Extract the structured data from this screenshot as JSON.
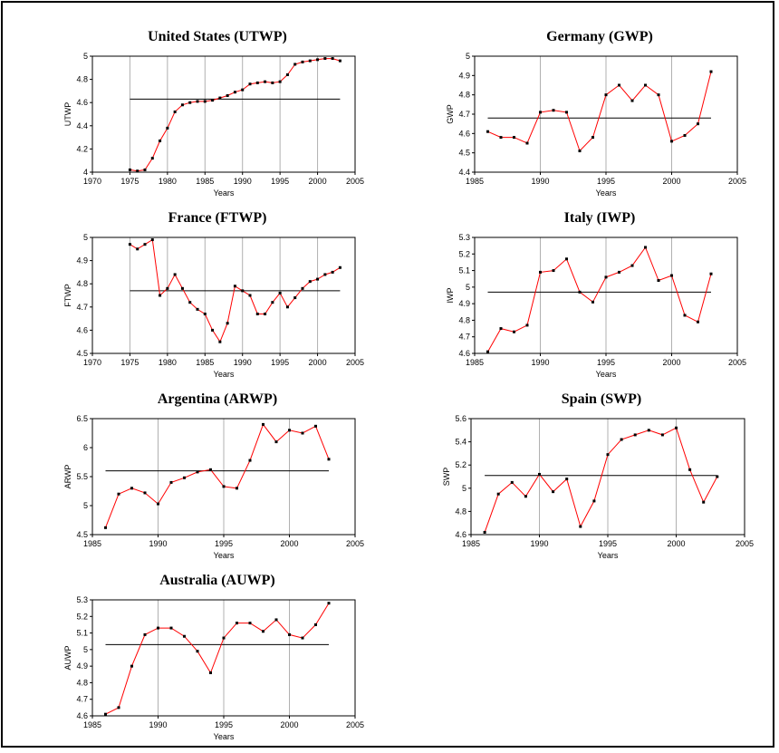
{
  "chart_data": [
    {
      "type": "line",
      "title": "United States (UTWP)",
      "xlabel": "Years",
      "ylabel": "UTWP",
      "xlim": [
        1970,
        2005
      ],
      "ylim": [
        4,
        5
      ],
      "xticks": [
        1970,
        1975,
        1980,
        1985,
        1990,
        1995,
        2000,
        2005
      ],
      "yticks": [
        "4",
        "4.2",
        "4.4",
        "4.6",
        "4.8",
        "5"
      ],
      "grid": "vertical",
      "mean": 4.63,
      "mean_range": [
        1975,
        2003
      ],
      "x": [
        1975,
        1976,
        1977,
        1978,
        1979,
        1980,
        1981,
        1982,
        1983,
        1984,
        1985,
        1986,
        1987,
        1988,
        1989,
        1990,
        1991,
        1992,
        1993,
        1994,
        1995,
        1996,
        1997,
        1998,
        1999,
        2000,
        2001,
        2002,
        2003
      ],
      "values": [
        4.02,
        4.01,
        4.02,
        4.12,
        4.27,
        4.38,
        4.52,
        4.58,
        4.6,
        4.61,
        4.61,
        4.62,
        4.64,
        4.66,
        4.69,
        4.71,
        4.76,
        4.77,
        4.78,
        4.77,
        4.78,
        4.84,
        4.93,
        4.95,
        4.96,
        4.97,
        4.98,
        4.98,
        4.96
      ]
    },
    {
      "type": "line",
      "title": "Germany (GWP)",
      "xlabel": "Years",
      "ylabel": "GWP",
      "xlim": [
        1985,
        2005
      ],
      "ylim": [
        4.4,
        5
      ],
      "xticks": [
        1985,
        1990,
        1995,
        2000,
        2005
      ],
      "yticks": [
        "4.4",
        "4.5",
        "4.6",
        "4.7",
        "4.8",
        "4.9",
        "5"
      ],
      "grid": "vertical",
      "mean": 4.68,
      "mean_range": [
        1986,
        2003
      ],
      "x": [
        1986,
        1987,
        1988,
        1989,
        1990,
        1991,
        1992,
        1993,
        1994,
        1995,
        1996,
        1997,
        1998,
        1999,
        2000,
        2001,
        2002,
        2003
      ],
      "values": [
        4.61,
        4.58,
        4.58,
        4.55,
        4.71,
        4.72,
        4.71,
        4.51,
        4.58,
        4.8,
        4.85,
        4.77,
        4.85,
        4.8,
        4.56,
        4.59,
        4.65,
        4.92
      ]
    },
    {
      "type": "line",
      "title": "France (FTWP)",
      "xlabel": "Years",
      "ylabel": "FTWP",
      "xlim": [
        1970,
        2005
      ],
      "ylim": [
        4.5,
        5
      ],
      "xticks": [
        1970,
        1975,
        1980,
        1985,
        1990,
        1995,
        2000,
        2005
      ],
      "yticks": [
        "4.5",
        "4.6",
        "4.7",
        "4.8",
        "4.9",
        "5"
      ],
      "grid": "vertical",
      "mean": 4.77,
      "mean_range": [
        1975,
        2003
      ],
      "x": [
        1975,
        1976,
        1977,
        1978,
        1979,
        1980,
        1981,
        1982,
        1983,
        1984,
        1985,
        1986,
        1987,
        1988,
        1989,
        1990,
        1991,
        1992,
        1993,
        1994,
        1995,
        1996,
        1997,
        1998,
        1999,
        2000,
        2001,
        2002,
        2003
      ],
      "values": [
        4.97,
        4.95,
        4.97,
        4.99,
        4.75,
        4.78,
        4.84,
        4.78,
        4.72,
        4.69,
        4.67,
        4.6,
        4.55,
        4.63,
        4.79,
        4.77,
        4.75,
        4.67,
        4.67,
        4.72,
        4.76,
        4.7,
        4.74,
        4.78,
        4.81,
        4.82,
        4.84,
        4.85,
        4.87
      ]
    },
    {
      "type": "line",
      "title": "Italy (IWP)",
      "xlabel": "Years",
      "ylabel": "IWP",
      "xlim": [
        1985,
        2005
      ],
      "ylim": [
        4.6,
        5.3
      ],
      "xticks": [
        1985,
        1990,
        1995,
        2000,
        2005
      ],
      "yticks": [
        "4.6",
        "4.7",
        "4.8",
        "4.9",
        "5",
        "5.1",
        "5.2",
        "5.3"
      ],
      "grid": "vertical",
      "mean": 4.97,
      "mean_range": [
        1986,
        2003
      ],
      "x": [
        1986,
        1987,
        1988,
        1989,
        1990,
        1991,
        1992,
        1993,
        1994,
        1995,
        1996,
        1997,
        1998,
        1999,
        2000,
        2001,
        2002,
        2003
      ],
      "values": [
        4.61,
        4.75,
        4.73,
        4.77,
        5.09,
        5.1,
        5.17,
        4.97,
        4.91,
        5.06,
        5.09,
        5.13,
        5.24,
        5.04,
        5.07,
        4.83,
        4.79,
        5.08
      ]
    },
    {
      "type": "line",
      "title": "Argentina (ARWP)",
      "xlabel": "Years",
      "ylabel": "ARWP",
      "xlim": [
        1985,
        2005
      ],
      "ylim": [
        4.5,
        6.5
      ],
      "xticks": [
        1985,
        1990,
        1995,
        2000,
        2005
      ],
      "yticks": [
        "4.5",
        "5",
        "5.5",
        "6",
        "6.5"
      ],
      "grid": "vertical",
      "mean": 5.6,
      "mean_range": [
        1986,
        2003
      ],
      "x": [
        1986,
        1987,
        1988,
        1989,
        1990,
        1991,
        1992,
        1993,
        1994,
        1995,
        1996,
        1997,
        1998,
        1999,
        2000,
        2001,
        2002,
        2003
      ],
      "values": [
        4.62,
        5.2,
        5.3,
        5.22,
        5.03,
        5.4,
        5.48,
        5.58,
        5.62,
        5.33,
        5.3,
        5.78,
        6.4,
        6.1,
        6.3,
        6.25,
        6.37,
        5.8
      ]
    },
    {
      "type": "line",
      "title": "Spain (SWP)",
      "xlabel": "Years",
      "ylabel": "SWP",
      "xlim": [
        1985,
        2005
      ],
      "ylim": [
        4.6,
        5.6
      ],
      "xticks": [
        1985,
        1990,
        1995,
        2000,
        2005
      ],
      "yticks": [
        "4.6",
        "4.8",
        "5",
        "5.2",
        "5.4",
        "5.6"
      ],
      "grid": "vertical",
      "mean": 5.11,
      "mean_range": [
        1986,
        2003
      ],
      "x": [
        1986,
        1987,
        1988,
        1989,
        1990,
        1991,
        1992,
        1993,
        1994,
        1995,
        1996,
        1997,
        1998,
        1999,
        2000,
        2001,
        2002,
        2003
      ],
      "values": [
        4.62,
        4.95,
        5.05,
        4.93,
        5.12,
        4.97,
        5.08,
        4.67,
        4.89,
        5.29,
        5.42,
        5.46,
        5.5,
        5.46,
        5.52,
        5.16,
        4.88,
        5.1
      ]
    },
    {
      "type": "line",
      "title": "Australia (AUWP)",
      "xlabel": "Years",
      "ylabel": "AUWP",
      "xlim": [
        1985,
        2005
      ],
      "ylim": [
        4.6,
        5.3
      ],
      "xticks": [
        1985,
        1990,
        1995,
        2000,
        2005
      ],
      "yticks": [
        "4.6",
        "4.7",
        "4.8",
        "4.9",
        "5",
        "5.1",
        "5.2",
        "5.3"
      ],
      "grid": "vertical",
      "mean": 5.03,
      "mean_range": [
        1986,
        2003
      ],
      "x": [
        1986,
        1987,
        1988,
        1989,
        1990,
        1991,
        1992,
        1993,
        1994,
        1995,
        1996,
        1997,
        1998,
        1999,
        2000,
        2001,
        2002,
        2003
      ],
      "values": [
        4.61,
        4.65,
        4.9,
        5.09,
        5.13,
        5.13,
        5.08,
        4.99,
        4.86,
        5.07,
        5.16,
        5.16,
        5.11,
        5.18,
        5.09,
        5.07,
        5.15,
        5.28
      ]
    }
  ],
  "colors": {
    "series": "#ff0000",
    "points": "#000000",
    "mean": "#000000",
    "grid": "#b0b0b0"
  }
}
